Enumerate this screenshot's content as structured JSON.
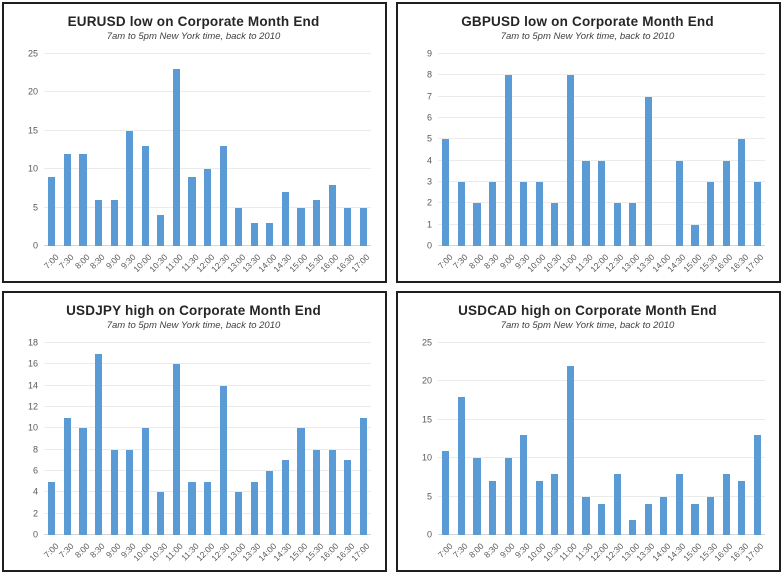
{
  "colors": {
    "bar_fill": "#5b9bd5",
    "gridline": "#ebebeb",
    "axis_line": "#d6d6d6",
    "tick_label": "#595959",
    "title_text": "#262626",
    "subtitle_text": "#3f3f3f",
    "panel_border": "#1f1f1f",
    "background": "#ffffff"
  },
  "chart_data": [
    {
      "type": "bar",
      "title": "EURUSD low on Corporate Month End",
      "subtitle": "7am to 5pm New York time, back to 2010",
      "categories": [
        "7:00",
        "7:30",
        "8:00",
        "8:30",
        "9:00",
        "9:30",
        "10:00",
        "10:30",
        "11:00",
        "11:30",
        "12:00",
        "12:30",
        "13:00",
        "13:30",
        "14:00",
        "14:30",
        "15:00",
        "15:30",
        "16:00",
        "16:30",
        "17:00"
      ],
      "values": [
        9,
        12,
        12,
        6,
        6,
        15,
        13,
        4,
        23,
        9,
        10,
        13,
        5,
        3,
        3,
        7,
        5,
        6,
        8,
        5,
        5
      ],
      "xlabel": "",
      "ylabel": "",
      "ylim": [
        0,
        25
      ],
      "ytick_step": 5,
      "grid": true,
      "legend": "none"
    },
    {
      "type": "bar",
      "title": "GBPUSD low on Corporate Month End",
      "subtitle": "7am to 5pm New York time, back to 2010",
      "categories": [
        "7:00",
        "7:30",
        "8:00",
        "8:30",
        "9:00",
        "9:30",
        "10:00",
        "10:30",
        "11:00",
        "11:30",
        "12:00",
        "12:30",
        "13:00",
        "13:30",
        "14:00",
        "14:30",
        "15:00",
        "15:30",
        "16:00",
        "16:30",
        "17:00"
      ],
      "values": [
        5,
        3,
        2,
        3,
        8,
        3,
        3,
        2,
        8,
        4,
        4,
        2,
        2,
        7,
        0,
        4,
        1,
        3,
        4,
        5,
        3
      ],
      "xlabel": "",
      "ylabel": "",
      "ylim": [
        0,
        9
      ],
      "ytick_step": 1,
      "grid": true,
      "legend": "none"
    },
    {
      "type": "bar",
      "title": "USDJPY high on Corporate Month End",
      "subtitle": "7am to 5pm New York time, back to 2010",
      "categories": [
        "7:00",
        "7:30",
        "8:00",
        "8:30",
        "9:00",
        "9:30",
        "10:00",
        "10:30",
        "11:00",
        "11:30",
        "12:00",
        "12:30",
        "13:00",
        "13:30",
        "14:00",
        "14:30",
        "15:00",
        "15:30",
        "16:00",
        "16:30",
        "17:00"
      ],
      "values": [
        5,
        11,
        10,
        17,
        8,
        8,
        10,
        4,
        16,
        5,
        5,
        14,
        4,
        5,
        6,
        7,
        10,
        8,
        8,
        7,
        11
      ],
      "xlabel": "",
      "ylabel": "",
      "ylim": [
        0,
        18
      ],
      "ytick_step": 2,
      "grid": true,
      "legend": "none"
    },
    {
      "type": "bar",
      "title": "USDCAD high on Corporate Month End",
      "subtitle": "7am to 5pm New York time, back to 2010",
      "categories": [
        "7:00",
        "7:30",
        "8:00",
        "8:30",
        "9:00",
        "9:30",
        "10:00",
        "10:30",
        "11:00",
        "11:30",
        "12:00",
        "12:30",
        "13:00",
        "13:30",
        "14:00",
        "14:30",
        "15:00",
        "15:30",
        "16:00",
        "16:30",
        "17:00"
      ],
      "values": [
        11,
        18,
        10,
        7,
        10,
        13,
        7,
        8,
        22,
        5,
        4,
        8,
        2,
        4,
        5,
        8,
        4,
        5,
        8,
        7,
        13
      ],
      "xlabel": "",
      "ylabel": "",
      "ylim": [
        0,
        25
      ],
      "ytick_step": 5,
      "grid": true,
      "legend": "none"
    }
  ]
}
